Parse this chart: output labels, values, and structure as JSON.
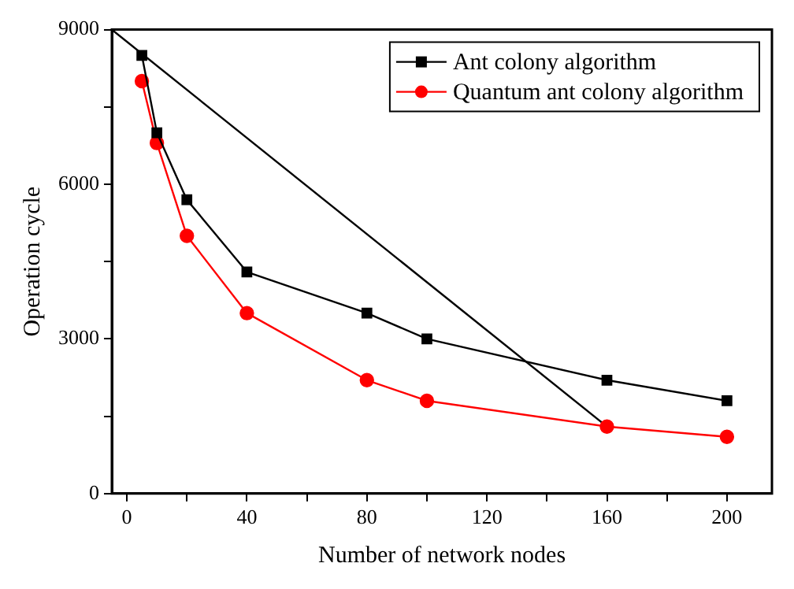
{
  "chart_data": {
    "type": "line",
    "xlabel": "Number of network nodes",
    "ylabel": "Operation cycle",
    "xlim": [
      -5,
      215
    ],
    "xticks": [
      0,
      {
        "value": 20,
        "label": null
      },
      40,
      {
        "value": 60,
        "label": null
      },
      80,
      {
        "value": 100,
        "label": null
      },
      120,
      {
        "value": 140,
        "label": null
      },
      160,
      {
        "value": 180,
        "label": null
      },
      200
    ],
    "ylim": [
      0,
      9000
    ],
    "yticks": [
      0,
      {
        "value": 1500,
        "label": null
      },
      3000,
      {
        "value": 4500,
        "label": null
      },
      6000,
      {
        "value": 7500,
        "label": null
      },
      9000
    ],
    "grid": false,
    "legend": "top right",
    "series": [
      {
        "name": "Ant colony algorithm",
        "color": "#000000",
        "marker": "square",
        "x": [
          5,
          10,
          20,
          40,
          80,
          100,
          160,
          200
        ],
        "values": [
          8500,
          7000,
          5700,
          4300,
          3500,
          3000,
          2200,
          1800
        ]
      },
      {
        "name": "Quantum ant colony algorithm",
        "color": "#ff0000",
        "marker": "circle",
        "x": [
          5,
          10,
          20,
          40,
          80,
          100,
          160,
          200
        ],
        "values": [
          8000,
          6800,
          5000,
          3500,
          2200,
          1800,
          1300,
          1100
        ]
      },
      {
        "color": "#000000",
        "marker": "none",
        "x": [
          -5,
          160
        ],
        "values": [
          9000,
          1300
        ]
      }
    ]
  }
}
